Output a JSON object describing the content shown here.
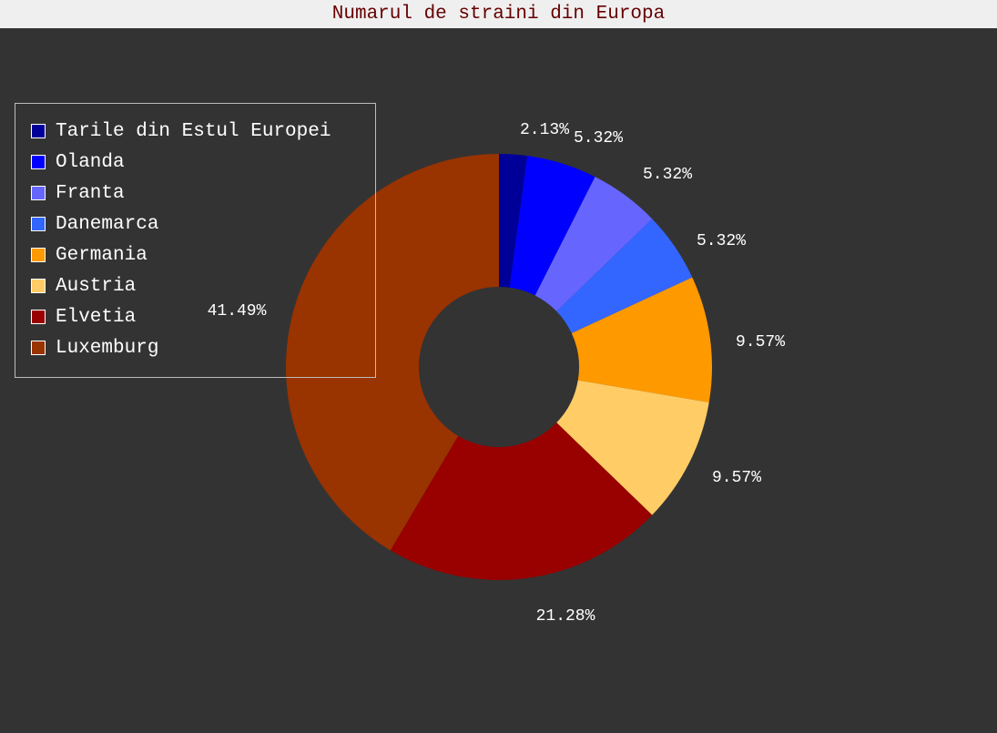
{
  "title": "Numarul de straini din Europa",
  "chart_data": {
    "type": "pie",
    "donut": true,
    "title": "Numarul de straini din Europa",
    "legend_position": "top-left",
    "slices": [
      {
        "name": "Tarile din Estul Europei",
        "value": 2.13,
        "label": "2.13%",
        "color": "#000099"
      },
      {
        "name": "Olanda",
        "value": 5.32,
        "label": "5.32%",
        "color": "#0000ff"
      },
      {
        "name": "Franta",
        "value": 5.32,
        "label": "5.32%",
        "color": "#6666ff"
      },
      {
        "name": "Danemarca",
        "value": 5.32,
        "label": "5.32%",
        "color": "#3366ff"
      },
      {
        "name": "Germania",
        "value": 9.57,
        "label": "9.57%",
        "color": "#ff9900"
      },
      {
        "name": "Austria",
        "value": 9.57,
        "label": "9.57%",
        "color": "#ffcc66"
      },
      {
        "name": "Elvetia",
        "value": 21.28,
        "label": "21.28%",
        "color": "#990000"
      },
      {
        "name": "Luxemburg",
        "value": 41.49,
        "label": "41.49%",
        "color": "#993300"
      }
    ]
  }
}
